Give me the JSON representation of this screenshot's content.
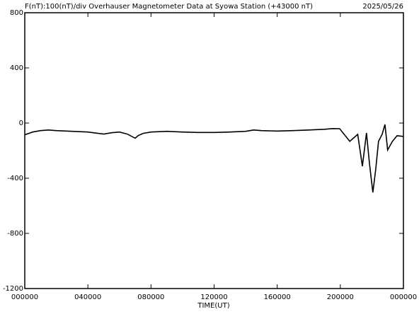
{
  "chart_data": {
    "type": "line",
    "title": "F(nT):100(nT)/div  Overhauser Magnetometer Data at Syowa Station (+43000 nT)",
    "date": "2025/05/26",
    "x_label": "TIME(UT)",
    "xlim": [
      0,
      24
    ],
    "xticks": [
      {
        "value": 0,
        "label": "000000"
      },
      {
        "value": 4,
        "label": "040000"
      },
      {
        "value": 8,
        "label": "080000"
      },
      {
        "value": 12,
        "label": "120000"
      },
      {
        "value": 16,
        "label": "160000"
      },
      {
        "value": 20,
        "label": "200000"
      },
      {
        "value": 24,
        "label": "000000"
      }
    ],
    "ylim": [
      -1200,
      800
    ],
    "yticks": [
      -1200,
      -800,
      -400,
      0,
      400,
      800
    ],
    "series": [
      {
        "color": "#000000",
        "x": [
          0,
          0.5,
          1,
          1.5,
          2,
          3,
          4,
          5,
          5.5,
          6,
          6.5,
          7,
          7.2,
          7.5,
          8,
          9,
          10,
          11,
          12,
          13,
          14,
          14.5,
          15,
          16,
          17,
          18,
          19,
          19.5,
          19.96,
          20.6,
          21.1,
          21.4,
          21.66,
          21.84,
          22.06,
          22.24,
          22.42,
          22.65,
          22.83,
          23.0,
          23.3,
          23.6,
          24
        ],
        "values": [
          -85,
          -65,
          -55,
          -50,
          -55,
          -60,
          -65,
          -80,
          -70,
          -65,
          -80,
          -110,
          -90,
          -75,
          -65,
          -60,
          -65,
          -68,
          -68,
          -65,
          -60,
          -50,
          -55,
          -58,
          -55,
          -50,
          -45,
          -40,
          -41,
          -133,
          -82,
          -313,
          -72,
          -287,
          -503,
          -338,
          -133,
          -82,
          -10,
          -195,
          -133,
          -92,
          -97
        ]
      }
    ]
  }
}
